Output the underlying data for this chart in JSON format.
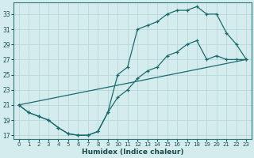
{
  "xlabel": "Humidex (Indice chaleur)",
  "bg_color": "#d5ecee",
  "grid_color": "#c0dde0",
  "line_color": "#1a6b6b",
  "xticks": [
    0,
    1,
    2,
    3,
    4,
    5,
    6,
    7,
    8,
    9,
    10,
    11,
    12,
    13,
    14,
    15,
    16,
    17,
    18,
    19,
    20,
    21,
    22,
    23
  ],
  "yticks": [
    17,
    19,
    21,
    23,
    25,
    27,
    29,
    31,
    33
  ],
  "line1_x": [
    0,
    1,
    2,
    3,
    4,
    5,
    6,
    7,
    8,
    9,
    10,
    11,
    12,
    13,
    14,
    15,
    16,
    17,
    18,
    19,
    20,
    21,
    22,
    23
  ],
  "line1_y": [
    21,
    20,
    19.5,
    19,
    18,
    17.2,
    17,
    17,
    17.5,
    20,
    22,
    23,
    24.5,
    25.5,
    26,
    27.5,
    28,
    29,
    29.5,
    27,
    27.5,
    27,
    27,
    27
  ],
  "line2_x": [
    0,
    1,
    2,
    3,
    4,
    5,
    6,
    7,
    8,
    9,
    10,
    11,
    12,
    13,
    14,
    15,
    16,
    17,
    18,
    19,
    20,
    21,
    22,
    23
  ],
  "line2_y": [
    21,
    20,
    19.5,
    19,
    18,
    17.2,
    17,
    17,
    17.5,
    20,
    25,
    26,
    31,
    31.5,
    32,
    33,
    33.5,
    33.5,
    34,
    33,
    33,
    30.5,
    29,
    27
  ],
  "line3_x": [
    0,
    23
  ],
  "line3_y": [
    21,
    27
  ]
}
